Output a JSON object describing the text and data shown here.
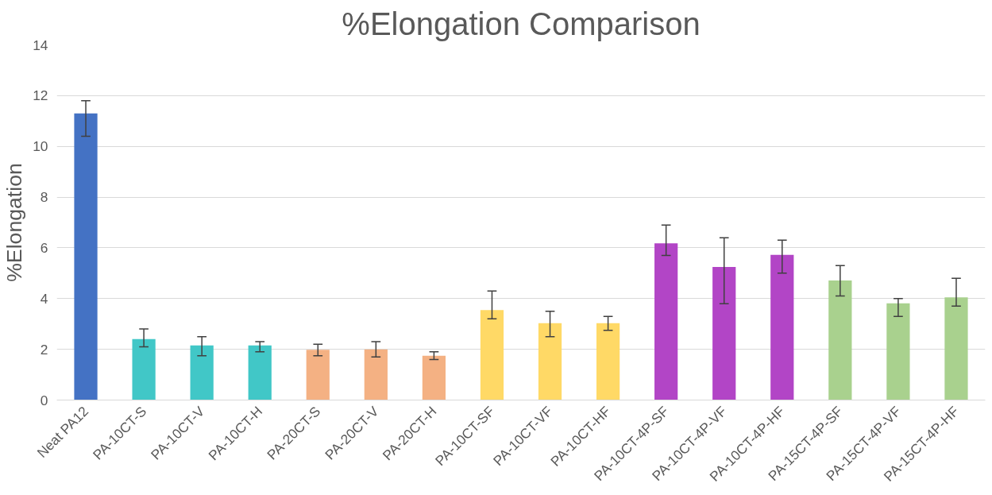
{
  "chart_data": {
    "type": "bar",
    "title": "%Elongation Comparison",
    "ylabel": "%Elongation",
    "categories": [
      "Neat PA12",
      "PA-10CT-S",
      "PA-10CT-V",
      "PA-10CT-H",
      "PA-20CT-S",
      "PA-20CT-V",
      "PA-20CT-H",
      "PA-10CT-SF",
      "PA-10CT-VF",
      "PA-10CT-HF",
      "PA-10CT-4P-SF",
      "PA-10CT-4P-VF",
      "PA-10CT-4P-HF",
      "PA-15CT-4P-SF",
      "PA-15CT-4P-VF",
      "PA-15CT-4P-HF"
    ],
    "values": [
      11.3,
      2.4,
      2.15,
      2.15,
      1.98,
      2.0,
      1.75,
      3.55,
      3.03,
      3.03,
      6.18,
      5.25,
      5.72,
      4.71,
      3.81,
      4.05
    ],
    "errors": [
      [
        10.4,
        11.8
      ],
      [
        2.1,
        2.8
      ],
      [
        1.75,
        2.5
      ],
      [
        1.9,
        2.3
      ],
      [
        1.75,
        2.2
      ],
      [
        1.7,
        2.3
      ],
      [
        1.6,
        1.9
      ],
      [
        3.2,
        4.3
      ],
      [
        2.5,
        3.5
      ],
      [
        2.75,
        3.3
      ],
      [
        5.7,
        6.9
      ],
      [
        3.8,
        6.4
      ],
      [
        5.0,
        6.3
      ],
      [
        4.1,
        5.3
      ],
      [
        3.3,
        4.0
      ],
      [
        3.7,
        4.8
      ]
    ],
    "colors": [
      "#4472c4",
      "#41c7c7",
      "#41c7c7",
      "#41c7c7",
      "#f4b183",
      "#f4b183",
      "#f4b183",
      "#ffd966",
      "#ffd966",
      "#ffd966",
      "#b245c6",
      "#b245c6",
      "#b245c6",
      "#a9d18e",
      "#a9d18e",
      "#a9d18e"
    ],
    "ylim": [
      0,
      14
    ],
    "yticks": [
      0,
      2,
      4,
      6,
      8,
      10,
      12,
      14
    ],
    "grid": "y"
  }
}
